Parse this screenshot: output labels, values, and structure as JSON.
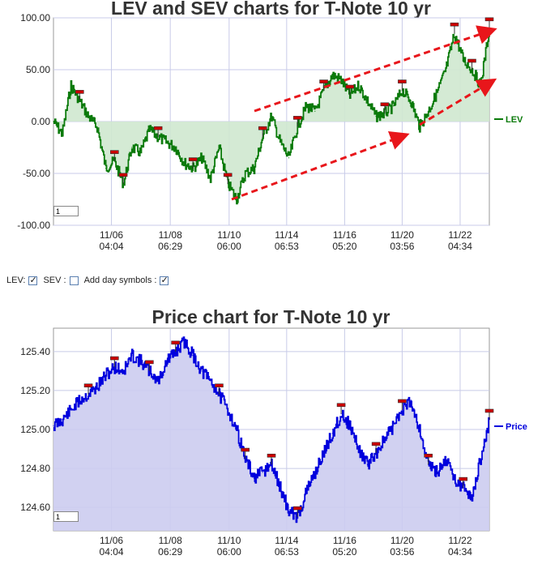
{
  "lev_chart": {
    "title": "LEV and SEV charts for T-Note 10 yr",
    "range_input": "1",
    "legend": "LEV",
    "colors": {
      "line": "#0a7a0a",
      "fill": "#cfe8cf",
      "arrow": "#e8161b",
      "grid": "#c8cbe8",
      "marker": "#cc0000"
    }
  },
  "controls": {
    "lev_label": "LEV:",
    "sev_label": "SEV :",
    "day_symbols_label": "Add day symbols :",
    "lev_checked": true,
    "sev_checked": false,
    "day_symbols_checked": true
  },
  "price_chart": {
    "title": "Price chart for T-Note 10 yr",
    "range_input": "1",
    "legend": "Price",
    "colors": {
      "line": "#0000dd",
      "fill": "#ccccf0",
      "grid": "#c8cbe8",
      "marker": "#cc0000"
    }
  },
  "chart_data": [
    {
      "type": "line",
      "title": "LEV and SEV charts for T-Note 10 yr",
      "series": [
        {
          "name": "LEV",
          "x": [
            0,
            2,
            4,
            6,
            8,
            10,
            12,
            14,
            16,
            18,
            20,
            22,
            24,
            26,
            28,
            30,
            32,
            34,
            36,
            38,
            40,
            42,
            44,
            46,
            48,
            50,
            52,
            54,
            56,
            58,
            60,
            62,
            64,
            66,
            68,
            70,
            72,
            74,
            76,
            78,
            80,
            82,
            84,
            86,
            88,
            90,
            92,
            94,
            96,
            98,
            100
          ],
          "values": [
            0,
            -12,
            35,
            20,
            5,
            -5,
            -45,
            -38,
            -60,
            -25,
            -30,
            -8,
            -15,
            -20,
            -25,
            -40,
            -45,
            -35,
            -55,
            -25,
            -60,
            -75,
            -50,
            -45,
            -15,
            5,
            -20,
            -35,
            -5,
            15,
            10,
            30,
            45,
            40,
            25,
            35,
            20,
            5,
            8,
            15,
            30,
            20,
            -5,
            10,
            28,
            50,
            85,
            60,
            50,
            35,
            90
          ]
        }
      ],
      "x_tick_labels": [
        "11/06\n04:04",
        "11/08\n06:29",
        "11/10\n06:00",
        "11/14\n06:53",
        "11/16\n05:20",
        "11/20\n03:56",
        "11/22\n04:34"
      ],
      "y_tick_labels": [
        "100.00",
        "50.00",
        "0.00",
        "-50.00",
        "-100.00"
      ],
      "ylim": [
        -100,
        100
      ],
      "grid": true,
      "legend_position": "right"
    },
    {
      "type": "line",
      "title": "Price chart for T-Note 10 yr",
      "series": [
        {
          "name": "Price",
          "x": [
            0,
            2,
            4,
            6,
            8,
            10,
            12,
            14,
            16,
            18,
            20,
            22,
            24,
            26,
            28,
            30,
            32,
            34,
            36,
            38,
            40,
            42,
            44,
            46,
            48,
            50,
            52,
            54,
            56,
            58,
            60,
            62,
            64,
            66,
            68,
            70,
            72,
            74,
            76,
            78,
            80,
            82,
            84,
            86,
            88,
            90,
            92,
            94,
            96,
            98,
            100
          ],
          "values": [
            125.02,
            125.05,
            125.1,
            125.15,
            125.18,
            125.22,
            125.28,
            125.32,
            125.3,
            125.38,
            125.35,
            125.3,
            125.25,
            125.35,
            125.4,
            125.45,
            125.38,
            125.3,
            125.25,
            125.18,
            125.1,
            125.0,
            124.85,
            124.75,
            124.78,
            124.82,
            124.7,
            124.58,
            124.55,
            124.68,
            124.78,
            124.88,
            124.98,
            125.08,
            125.02,
            124.9,
            124.82,
            124.88,
            124.95,
            125.02,
            125.1,
            125.15,
            125.0,
            124.82,
            124.78,
            124.85,
            124.75,
            124.7,
            124.65,
            124.85,
            125.05
          ]
        }
      ],
      "x_tick_labels": [
        "11/06\n04:04",
        "11/08\n06:29",
        "11/10\n06:00",
        "11/14\n06:53",
        "11/16\n05:20",
        "11/20\n03:56",
        "11/22\n04:34"
      ],
      "y_tick_labels": [
        "125.40",
        "125.20",
        "125.00",
        "124.80",
        "124.60"
      ],
      "ylim": [
        124.48,
        125.52
      ],
      "grid": true,
      "legend_position": "right"
    }
  ]
}
